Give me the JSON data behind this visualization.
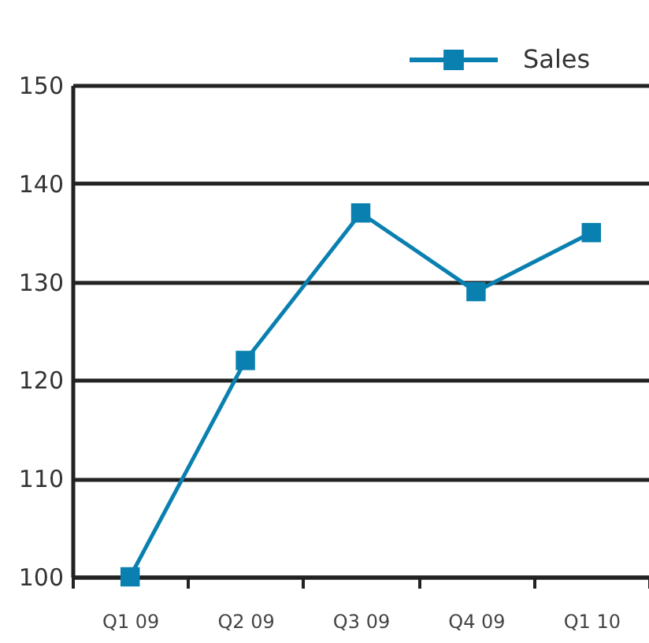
{
  "chart_data": {
    "type": "line",
    "categories": [
      "Q1 09",
      "Q2 09",
      "Q3 09",
      "Q4 09",
      "Q1 10"
    ],
    "series": [
      {
        "name": "Sales",
        "color": "#0a80b0",
        "values": [
          100,
          122,
          137,
          129,
          135
        ]
      }
    ],
    "ylim": [
      100,
      150
    ],
    "yticks": [
      100,
      110,
      120,
      130,
      140,
      150
    ],
    "grid": "y",
    "legend": "top right",
    "marker": "square",
    "line_style": "solid"
  }
}
